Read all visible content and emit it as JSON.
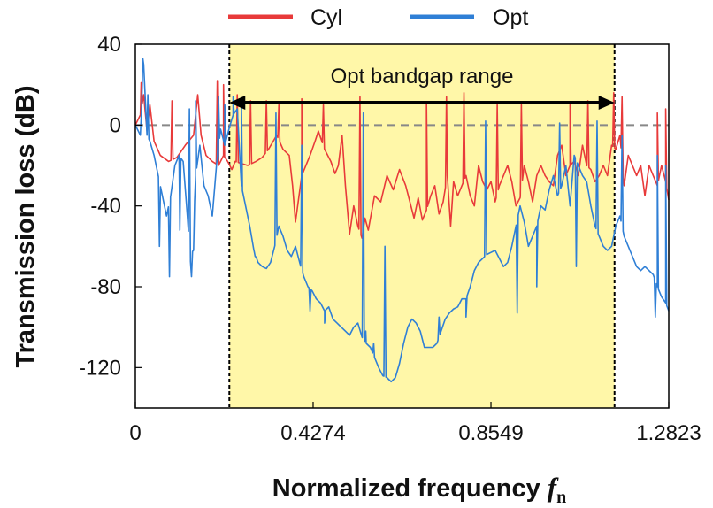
{
  "chart_data": {
    "type": "line",
    "xlabel": "Normalized frequency ",
    "xlabel_symbol": "f",
    "xlabel_subscript": "n",
    "ylabel": "Transmission loss (dB)",
    "xlim": [
      0,
      1.2823
    ],
    "ylim": [
      -140,
      40
    ],
    "x_ticks": [
      {
        "value": 0,
        "label": "0"
      },
      {
        "value": 0.4274,
        "label": "0.4274"
      },
      {
        "value": 0.8549,
        "label": "0.8549"
      },
      {
        "value": 1.2823,
        "label": "1.2823"
      }
    ],
    "y_ticks": [
      {
        "value": 40,
        "label": "40"
      },
      {
        "value": 0,
        "label": "0"
      },
      {
        "value": -40,
        "label": "-40"
      },
      {
        "value": -80,
        "label": "-80"
      },
      {
        "value": -120,
        "label": "-120"
      }
    ],
    "zero_reference_line": {
      "value": 0,
      "style": "dashed",
      "color": "#888888"
    },
    "bandgap": {
      "start": 0.226,
      "end": 1.152,
      "color": "#fff7a8",
      "label": "Opt bandgap range"
    },
    "legend": {
      "placement": "top-center"
    },
    "series": [
      {
        "name": "Cyl",
        "color": "#e83a3a",
        "x": [
          0.0,
          0.012,
          0.02,
          0.028,
          0.035,
          0.045,
          0.06,
          0.08,
          0.1,
          0.12,
          0.14,
          0.15,
          0.158,
          0.17,
          0.185,
          0.2,
          0.212,
          0.222,
          0.232,
          0.24,
          0.255,
          0.27,
          0.29,
          0.305,
          0.32,
          0.34,
          0.355,
          0.37,
          0.378,
          0.385,
          0.4,
          0.42,
          0.432,
          0.44,
          0.455,
          0.47,
          0.48,
          0.488,
          0.497,
          0.505,
          0.515,
          0.525,
          0.535,
          0.545,
          0.552,
          0.56,
          0.575,
          0.59,
          0.605,
          0.62,
          0.635,
          0.65,
          0.66,
          0.67,
          0.68,
          0.69,
          0.7,
          0.71,
          0.72,
          0.73,
          0.74,
          0.75,
          0.758,
          0.765,
          0.775,
          0.785,
          0.795,
          0.805,
          0.815,
          0.825,
          0.835,
          0.845,
          0.855,
          0.865,
          0.875,
          0.885,
          0.895,
          0.905,
          0.915,
          0.925,
          0.935,
          0.945,
          0.955,
          0.965,
          0.975,
          0.985,
          0.995,
          1.005,
          1.015,
          1.025,
          1.035,
          1.045,
          1.055,
          1.065,
          1.075,
          1.085,
          1.095,
          1.105,
          1.115,
          1.125,
          1.135,
          1.145,
          1.155,
          1.165,
          1.175,
          1.185,
          1.195,
          1.205,
          1.215,
          1.225,
          1.235,
          1.245,
          1.255,
          1.265,
          1.275,
          1.2823
        ],
        "y": [
          0,
          5,
          15,
          -3,
          10,
          -8,
          -15,
          -18,
          -16,
          -10,
          -5,
          15,
          -5,
          -15,
          -18,
          -20,
          -15,
          -18,
          -22,
          -18,
          -19,
          -20,
          -18,
          -16,
          -12,
          -5,
          -12,
          -15,
          -30,
          -48,
          -25,
          -15,
          -8,
          -3,
          -12,
          -18,
          -24,
          -20,
          -5,
          -30,
          -54,
          -40,
          -50,
          -56,
          -46,
          -52,
          -35,
          -38,
          -25,
          -32,
          -22,
          -30,
          -38,
          -46,
          -36,
          -47,
          -42,
          -35,
          -30,
          -44,
          -38,
          -25,
          -50,
          -28,
          -35,
          -30,
          -25,
          -35,
          -40,
          -20,
          -28,
          -32,
          -28,
          -38,
          -30,
          -25,
          -20,
          -28,
          -40,
          -36,
          -20,
          -28,
          -38,
          -25,
          -20,
          -25,
          -28,
          -30,
          -15,
          -10,
          -25,
          -20,
          -18,
          -25,
          -10,
          -20,
          -22,
          -28,
          -25,
          -20,
          -25,
          -10,
          -12,
          -5,
          -30,
          -15,
          -20,
          -25,
          -20,
          -35,
          -20,
          -25,
          -30,
          -20,
          -28,
          -37
        ],
        "peaks": [
          [
            0.014,
            21
          ],
          [
            0.088,
            12
          ],
          [
            0.197,
            22
          ],
          [
            0.212,
            20
          ],
          [
            0.245,
            15
          ],
          [
            0.277,
            12
          ],
          [
            0.315,
            12
          ],
          [
            0.345,
            10
          ],
          [
            0.4,
            13
          ],
          [
            0.452,
            10
          ],
          [
            0.54,
            14
          ],
          [
            0.7,
            11
          ],
          [
            0.748,
            14
          ],
          [
            0.79,
            16
          ],
          [
            0.87,
            10
          ],
          [
            0.928,
            10
          ],
          [
            1.045,
            10
          ],
          [
            1.088,
            12
          ],
          [
            1.15,
            16
          ],
          [
            1.17,
            14
          ],
          [
            1.255,
            6
          ],
          [
            1.275,
            8
          ]
        ]
      },
      {
        "name": "Opt",
        "color": "#2f7fd6",
        "x": [
          0.0,
          0.012,
          0.02,
          0.028,
          0.035,
          0.045,
          0.055,
          0.065,
          0.075,
          0.085,
          0.095,
          0.105,
          0.115,
          0.125,
          0.135,
          0.145,
          0.155,
          0.165,
          0.175,
          0.185,
          0.195,
          0.205,
          0.215,
          0.225,
          0.235,
          0.245,
          0.255,
          0.265,
          0.275,
          0.285,
          0.295,
          0.305,
          0.315,
          0.325,
          0.335,
          0.345,
          0.355,
          0.365,
          0.375,
          0.385,
          0.395,
          0.405,
          0.415,
          0.425,
          0.435,
          0.445,
          0.455,
          0.465,
          0.475,
          0.485,
          0.495,
          0.505,
          0.515,
          0.525,
          0.535,
          0.545,
          0.555,
          0.565,
          0.575,
          0.585,
          0.595,
          0.605,
          0.615,
          0.625,
          0.635,
          0.645,
          0.655,
          0.665,
          0.675,
          0.685,
          0.695,
          0.705,
          0.715,
          0.725,
          0.735,
          0.745,
          0.755,
          0.765,
          0.775,
          0.785,
          0.795,
          0.805,
          0.815,
          0.825,
          0.835,
          0.845,
          0.855,
          0.865,
          0.875,
          0.885,
          0.895,
          0.905,
          0.915,
          0.925,
          0.935,
          0.945,
          0.955,
          0.965,
          0.975,
          0.985,
          0.995,
          1.005,
          1.015,
          1.025,
          1.035,
          1.045,
          1.055,
          1.065,
          1.075,
          1.085,
          1.095,
          1.105,
          1.115,
          1.125,
          1.135,
          1.145,
          1.155,
          1.165,
          1.175,
          1.185,
          1.195,
          1.205,
          1.215,
          1.225,
          1.235,
          1.245,
          1.255,
          1.265,
          1.275,
          1.2823
        ],
        "y": [
          0,
          -5,
          30,
          -5,
          -8,
          -15,
          -25,
          -35,
          -45,
          -35,
          -20,
          -15,
          -18,
          -45,
          -75,
          -25,
          -10,
          -30,
          -35,
          -45,
          -20,
          -2,
          -10,
          -2,
          5,
          8,
          -30,
          -40,
          -50,
          -62,
          -68,
          -70,
          -71,
          -68,
          -60,
          -50,
          -55,
          -62,
          -65,
          -60,
          -68,
          -75,
          -80,
          -82,
          -86,
          -88,
          -92,
          -90,
          -96,
          -98,
          -100,
          -102,
          -104,
          -100,
          -98,
          -105,
          -108,
          -110,
          -115,
          -120,
          -124,
          -125,
          -127,
          -125,
          -118,
          -108,
          -100,
          -96,
          -98,
          -102,
          -110,
          -110,
          -110,
          -108,
          -102,
          -96,
          -93,
          -91,
          -90,
          -86,
          -86,
          -80,
          -72,
          -68,
          -66,
          -64,
          -63,
          -62,
          -66,
          -70,
          -68,
          -60,
          -50,
          -40,
          -48,
          -60,
          -55,
          -50,
          -40,
          -42,
          -32,
          -25,
          -35,
          -30,
          -20,
          -40,
          -15,
          -20,
          -25,
          -28,
          -40,
          -50,
          -55,
          -60,
          -62,
          -60,
          -50,
          -45,
          -55,
          -60,
          -65,
          -70,
          -72,
          -70,
          -72,
          -74,
          -80,
          -85,
          -88,
          -92
        ],
        "peaks": [
          [
            0.018,
            33
          ],
          [
            0.03,
            15
          ],
          [
            0.13,
            8
          ],
          [
            0.145,
            12
          ],
          [
            0.2,
            14
          ],
          [
            0.215,
            10
          ],
          [
            0.235,
            14
          ],
          [
            0.255,
            12
          ],
          [
            0.338,
            6
          ],
          [
            0.4,
            -10
          ],
          [
            0.548,
            6
          ],
          [
            0.6,
            -60
          ],
          [
            0.842,
            2
          ],
          [
            1.02,
            1
          ],
          [
            1.11,
            2
          ],
          [
            1.17,
            -5
          ],
          [
            1.255,
            -15
          ],
          [
            1.275,
            -20
          ]
        ],
        "dips": [
          [
            0.058,
            -60
          ],
          [
            0.082,
            -75
          ],
          [
            0.107,
            -52
          ],
          [
            0.14,
            -62
          ],
          [
            0.288,
            -65
          ],
          [
            0.318,
            -70
          ],
          [
            0.42,
            -92
          ],
          [
            0.455,
            -98
          ],
          [
            0.554,
            -102
          ],
          [
            0.573,
            -108
          ],
          [
            0.73,
            -95
          ],
          [
            0.795,
            -95
          ],
          [
            0.918,
            -93
          ],
          [
            0.965,
            -80
          ],
          [
            1.06,
            -70
          ],
          [
            1.25,
            -95
          ]
        ]
      }
    ]
  }
}
